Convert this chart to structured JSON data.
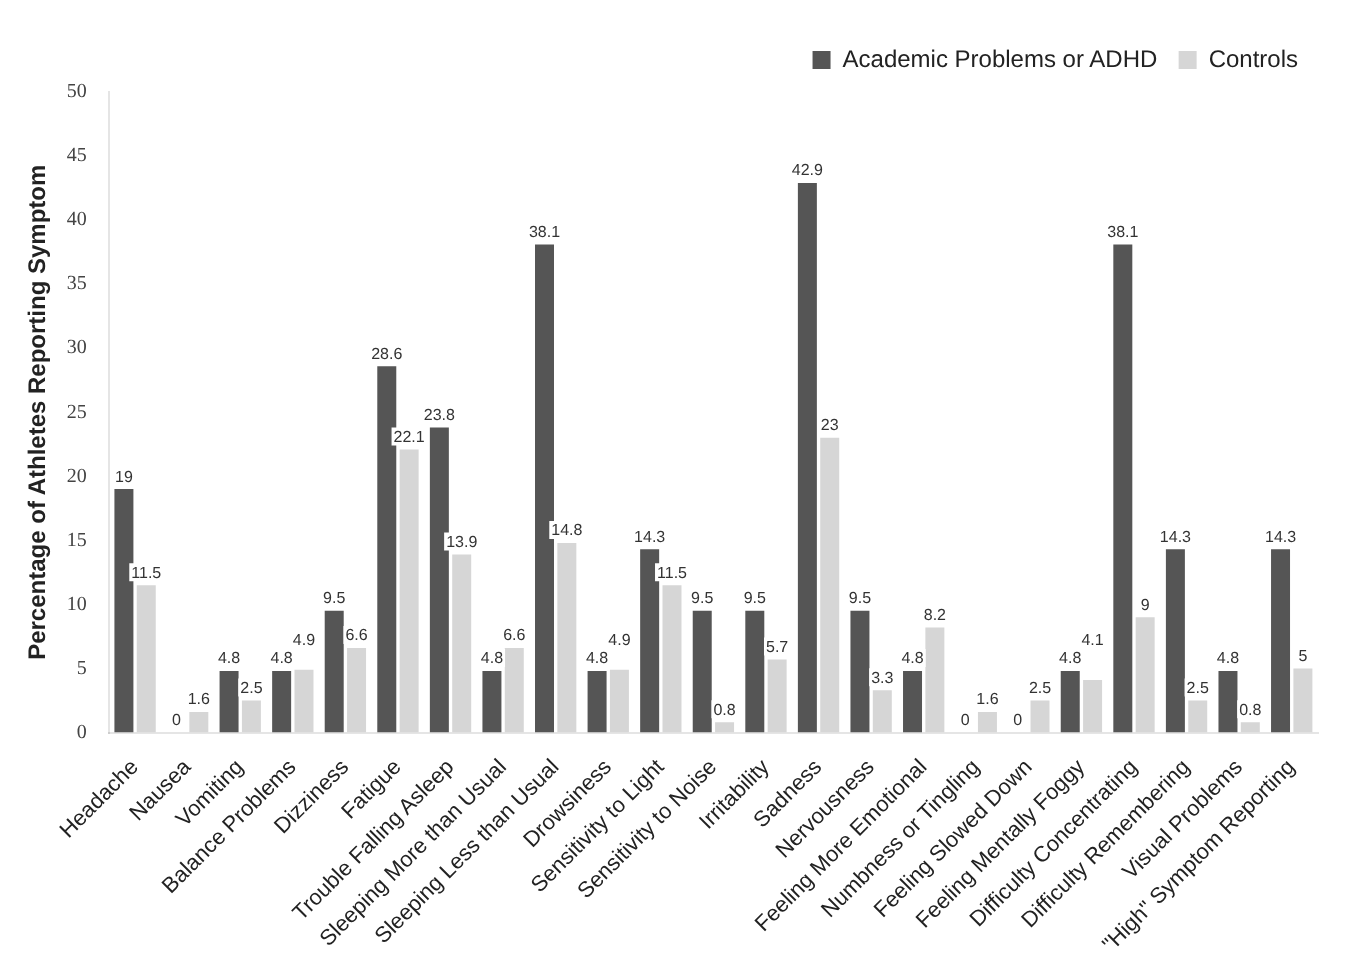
{
  "chart_data": {
    "type": "bar",
    "ylabel": "Percentage of Athletes Reporting Symptom",
    "categories": [
      "Headache",
      "Nausea",
      "Vomiting",
      "Balance Problems",
      "Dizziness",
      "Fatigue",
      "Trouble Falling Asleep",
      "Sleeping More than Usual",
      "Sleeping Less than Usual",
      "Drowsiness",
      "Sensitivity to Light",
      "Sensitivity to Noise",
      "Irritability",
      "Sadness",
      "Nervousness",
      "Feeling More Emotional",
      "Numbness or Tingling",
      "Feeling Slowed Down",
      "Feeling Mentally Foggy",
      "Difficulty Concentrating",
      "Difficulty Remembering",
      "Visual Problems",
      "\"High\" Symptom Reporting"
    ],
    "series": [
      {
        "name": "Academic Problems or ADHD",
        "color": "#555555",
        "values": [
          19,
          0,
          4.8,
          4.8,
          9.5,
          28.6,
          23.8,
          4.8,
          38.1,
          4.8,
          14.3,
          9.5,
          9.5,
          42.9,
          9.5,
          4.8,
          0,
          0,
          4.8,
          38.1,
          14.3,
          4.8,
          14.3
        ]
      },
      {
        "name": "Controls",
        "color": "#d6d6d6",
        "values": [
          11.5,
          1.6,
          2.5,
          4.9,
          6.6,
          22.1,
          13.9,
          6.6,
          14.8,
          4.9,
          11.5,
          0.8,
          5.7,
          23,
          3.3,
          8.2,
          1.6,
          2.5,
          4.1,
          9,
          2.5,
          0.8,
          5
        ]
      }
    ],
    "ylim": [
      0,
      50
    ],
    "yticks": [
      0,
      5,
      10,
      15,
      20,
      25,
      30,
      35,
      40,
      45,
      50
    ],
    "grid": false,
    "legend": "top right",
    "data_labels": true
  }
}
